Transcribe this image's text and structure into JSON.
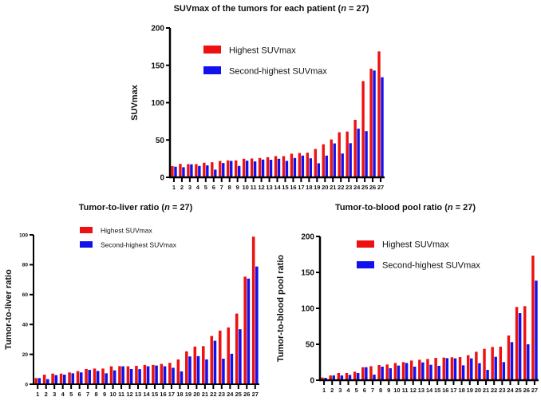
{
  "chart_data": [
    {
      "id": "suvmax",
      "type": "bar",
      "title_prefix": "SUVmax of the tumors for each patient (",
      "title_italic": "n",
      "title_suffix": " = 27)",
      "xlabel": "",
      "ylabel": "SUVmax",
      "ylim": [
        0,
        200
      ],
      "yticks": [
        0,
        50,
        100,
        150,
        200
      ],
      "categories": [
        "1",
        "2",
        "3",
        "4",
        "5",
        "6",
        "7",
        "8",
        "9",
        "10",
        "11",
        "12",
        "13",
        "14",
        "15",
        "16",
        "17",
        "18",
        "19",
        "20",
        "21",
        "22",
        "23",
        "24",
        "25",
        "26",
        "27"
      ],
      "legend_position": "top-left",
      "grid": false,
      "series": [
        {
          "name": "Highest SUVmax",
          "color": "#ee1111",
          "values": [
            15,
            18,
            17.7,
            17.7,
            19.5,
            20.2,
            22,
            22.7,
            22.7,
            24.8,
            25.2,
            25.9,
            27,
            28.4,
            28.4,
            31.6,
            32.6,
            33,
            38,
            44.3,
            50.7,
            60.3,
            61.3,
            77,
            128.8,
            145.5,
            168.6
          ]
        },
        {
          "name": "Second-highest SUVmax",
          "color": "#1111ee",
          "values": [
            14.2,
            13.5,
            17.4,
            15.2,
            16,
            10.3,
            19.1,
            22,
            15.2,
            22.3,
            21.3,
            23.8,
            23.5,
            24.8,
            22,
            25.9,
            29.1,
            25.5,
            18.8,
            29.1,
            45.4,
            31.9,
            45.7,
            65.2,
            61.8,
            143,
            134
          ]
        }
      ]
    },
    {
      "id": "liver",
      "type": "bar",
      "title_prefix": "Tumor-to-liver ratio (",
      "title_italic": "n",
      "title_suffix": " = 27)",
      "xlabel": "",
      "ylabel": "Tumor-to-liver ratio",
      "ylim": [
        0,
        100
      ],
      "yticks": [
        0,
        20,
        40,
        60,
        80,
        100
      ],
      "categories": [
        "1",
        "2",
        "3",
        "4",
        "5",
        "6",
        "7",
        "8",
        "9",
        "10",
        "11",
        "12",
        "13",
        "14",
        "15",
        "16",
        "17",
        "18",
        "19",
        "20",
        "21",
        "22",
        "23",
        "24",
        "25",
        "26",
        "27"
      ],
      "legend_position": "top-left",
      "grid": false,
      "series": [
        {
          "name": "Highest SUVmax",
          "color": "#ee1111",
          "values": [
            4.1,
            6.4,
            7.1,
            7.1,
            7.9,
            8.8,
            10.2,
            10.5,
            10.5,
            12,
            12.1,
            12,
            12.3,
            12.9,
            12.9,
            13.6,
            14.3,
            16.6,
            22,
            25.2,
            25.5,
            32.3,
            35.9,
            38,
            47.3,
            72,
            98.8
          ]
        },
        {
          "name": "Second-highest SUVmax",
          "color": "#1111ee",
          "values": [
            4.1,
            3.4,
            6.1,
            6.4,
            7.3,
            7.9,
            9.6,
            8.9,
            7.3,
            9.3,
            12,
            10.2,
            10.1,
            12,
            12.5,
            12,
            11,
            8.6,
            18.6,
            18.8,
            16.6,
            29.1,
            17.1,
            20.4,
            36.8,
            70.7,
            78.8
          ]
        }
      ]
    },
    {
      "id": "bloodpool",
      "type": "bar",
      "title_prefix": "Tumor-to-blood pool ratio (",
      "title_italic": "n",
      "title_suffix": " = 27)",
      "xlabel": "",
      "ylabel": "Tumor-to-blood pool ratio",
      "ylim": [
        0,
        200
      ],
      "yticks": [
        0,
        50,
        100,
        150,
        200
      ],
      "categories": [
        "1",
        "2",
        "3",
        "4",
        "5",
        "6",
        "7",
        "8",
        "9",
        "10",
        "11",
        "12",
        "13",
        "14",
        "15",
        "16",
        "17",
        "18",
        "19",
        "20",
        "21",
        "22",
        "23",
        "24",
        "25",
        "26",
        "27"
      ],
      "legend_position": "top-left",
      "grid": false,
      "series": [
        {
          "name": "Highest SUVmax",
          "color": "#ee1111",
          "values": [
            3.7,
            6.7,
            10,
            10,
            11.9,
            18.1,
            19.6,
            21.1,
            21.9,
            24,
            25.2,
            27.4,
            28.5,
            29.6,
            31.1,
            31.5,
            31.9,
            32.2,
            34.8,
            39.6,
            43.7,
            46.3,
            46.7,
            62.2,
            101.9,
            103,
            173.3
          ]
        },
        {
          "name": "Second-highest SUVmax",
          "color": "#1111ee",
          "values": [
            3.3,
            6.7,
            6.7,
            7.4,
            10,
            18.1,
            7.8,
            18.9,
            16.7,
            20.4,
            24,
            18.9,
            24.8,
            21.5,
            20,
            30.7,
            30.4,
            20.7,
            30.4,
            23.7,
            14.4,
            32.6,
            25.2,
            53,
            93.3,
            50,
            138.5
          ]
        }
      ]
    }
  ]
}
